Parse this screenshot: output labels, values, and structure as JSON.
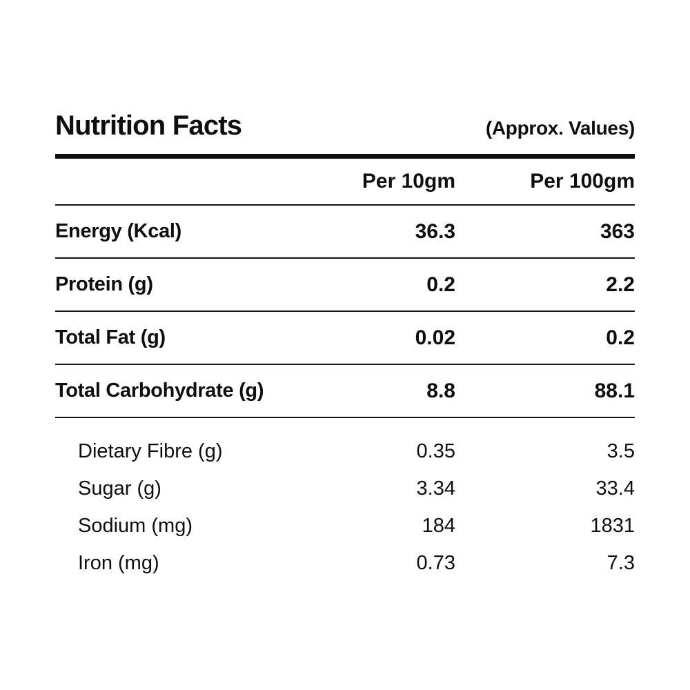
{
  "label": {
    "title": "Nutrition Facts",
    "subtitle": "(Approx. Values)",
    "columns": {
      "per10": "Per 10gm",
      "per100": "Per 100gm"
    },
    "rows": [
      {
        "label": "Energy (Kcal)",
        "per10": "36.3",
        "per100": "363"
      },
      {
        "label": "Protein (g)",
        "per10": "0.2",
        "per100": "2.2"
      },
      {
        "label": "Total Fat (g)",
        "per10": "0.02",
        "per100": "0.2"
      },
      {
        "label": "Total Carbohydrate (g)",
        "per10": "8.8",
        "per100": "88.1"
      },
      {
        "label": "Dietary Fibre (g)",
        "per10": "0.35",
        "per100": "3.5"
      },
      {
        "label": "Sugar (g)",
        "per10": "3.34",
        "per100": "33.4"
      },
      {
        "label": "Sodium (mg)",
        "per10": "184",
        "per100": "1831"
      },
      {
        "label": "Iron (mg)",
        "per10": "0.73",
        "per100": "7.3"
      }
    ],
    "colors": {
      "text": "#0f0f0f",
      "rule": "#141414",
      "background": "#ffffff"
    }
  }
}
